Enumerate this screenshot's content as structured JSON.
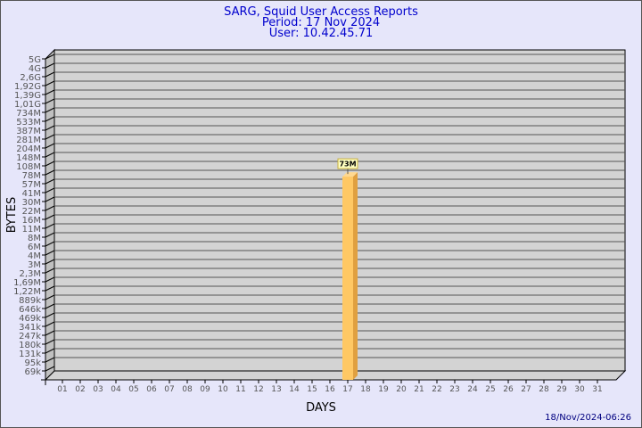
{
  "chart_data": {
    "type": "bar",
    "title": [
      "SARG, Squid User Access Reports",
      "Period: 17 Nov 2024",
      "User: 10.42.45.71"
    ],
    "xlabel": "DAYS",
    "ylabel": "BYTES",
    "y_scale": "log",
    "y_ticks": [
      "5G",
      "4G",
      "2,6G",
      "1,92G",
      "1,39G",
      "1,01G",
      "734M",
      "533M",
      "387M",
      "281M",
      "204M",
      "148M",
      "108M",
      "78M",
      "57M",
      "41M",
      "30M",
      "22M",
      "16M",
      "11M",
      "8M",
      "6M",
      "4M",
      "3M",
      "2,3M",
      "1,69M",
      "1,22M",
      "889k",
      "646k",
      "469k",
      "341k",
      "247k",
      "180k",
      "131k",
      "95k",
      "69k"
    ],
    "categories": [
      "01",
      "02",
      "03",
      "04",
      "05",
      "06",
      "07",
      "08",
      "09",
      "10",
      "11",
      "12",
      "13",
      "14",
      "15",
      "16",
      "17",
      "18",
      "19",
      "20",
      "21",
      "22",
      "23",
      "24",
      "25",
      "26",
      "27",
      "28",
      "29",
      "30",
      "31"
    ],
    "bars": [
      {
        "category": "17",
        "value": 73000000,
        "label": "73M"
      }
    ],
    "grid": true,
    "legend": "none",
    "colors": {
      "bar_front": "#ffc864",
      "bar_side": "#e0a040",
      "bar_top": "#ffd890",
      "wall": "#d3d3d3",
      "background": "#e6e6fa",
      "title": "#0000cd",
      "label_bg": "#ffffc0"
    }
  },
  "footer": {
    "timestamp": "18/Nov/2024-06:26"
  }
}
